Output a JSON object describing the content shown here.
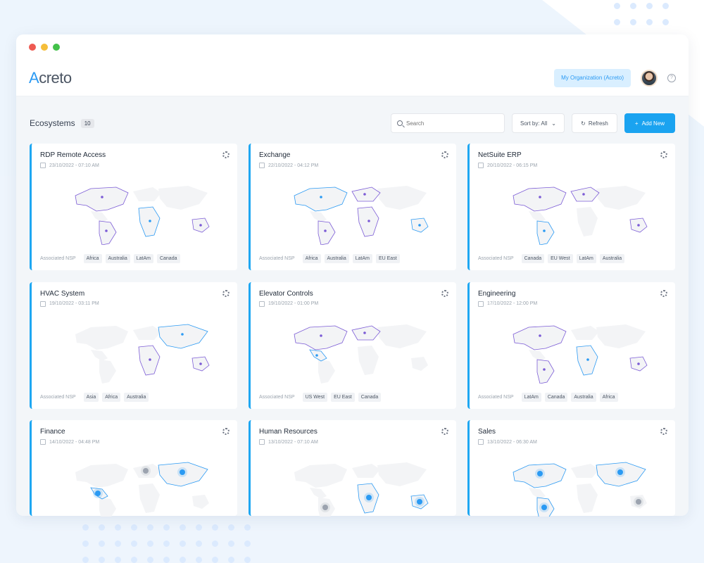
{
  "window": {
    "controls": [
      "close",
      "minimize",
      "maximize"
    ]
  },
  "header": {
    "logo_first": "A",
    "logo_rest": "creto",
    "org_button": "My Organization (Acreto)",
    "help_icon": "help-icon",
    "avatar_icon": "user-avatar"
  },
  "toolbar": {
    "title": "Ecosystems",
    "count": "10",
    "search_placeholder": "Search",
    "sort_label": "Sort by: All",
    "refresh_label": "Refresh",
    "add_label": "Add New"
  },
  "nsp_label": "Associated NSP",
  "colors": {
    "accent": "#1ea7f2",
    "region_purple": "#7c5cd6",
    "region_blue": "#2b9af3"
  },
  "cards": [
    {
      "name": "RDP Remote Access",
      "date": "23/10/2022 - 07:10 AM",
      "tags": [
        "Africa",
        "Australia",
        "LatAm",
        "Canada"
      ]
    },
    {
      "name": "Exchange",
      "date": "22/10/2022 - 04:12 PM",
      "tags": [
        "Africa",
        "Australia",
        "LatAm",
        "EU East"
      ]
    },
    {
      "name": "NetSuite ERP",
      "date": "20/10/2022 - 06:15 PM",
      "tags": [
        "Canada",
        "EU West",
        "LatAm",
        "Australia"
      ]
    },
    {
      "name": "HVAC System",
      "date": "19/10/2022 - 03:11 PM",
      "tags": [
        "Asia",
        "Africa",
        "Australia"
      ]
    },
    {
      "name": "Elevator Controls",
      "date": "19/10/2022 - 01:00 PM",
      "tags": [
        "US West",
        "EU East",
        "Canada"
      ]
    },
    {
      "name": "Engineering",
      "date": "17/10/2022 - 12:00 PM",
      "tags": [
        "LatAm",
        "Canada",
        "Australia",
        "Africa"
      ]
    },
    {
      "name": "Finance",
      "date": "14/10/2022 - 04:48 PM",
      "tags": []
    },
    {
      "name": "Human Resources",
      "date": "13/10/2022 - 07:10 AM",
      "tags": []
    },
    {
      "name": "Sales",
      "date": "13/10/2022 - 06:30 AM",
      "tags": []
    }
  ]
}
